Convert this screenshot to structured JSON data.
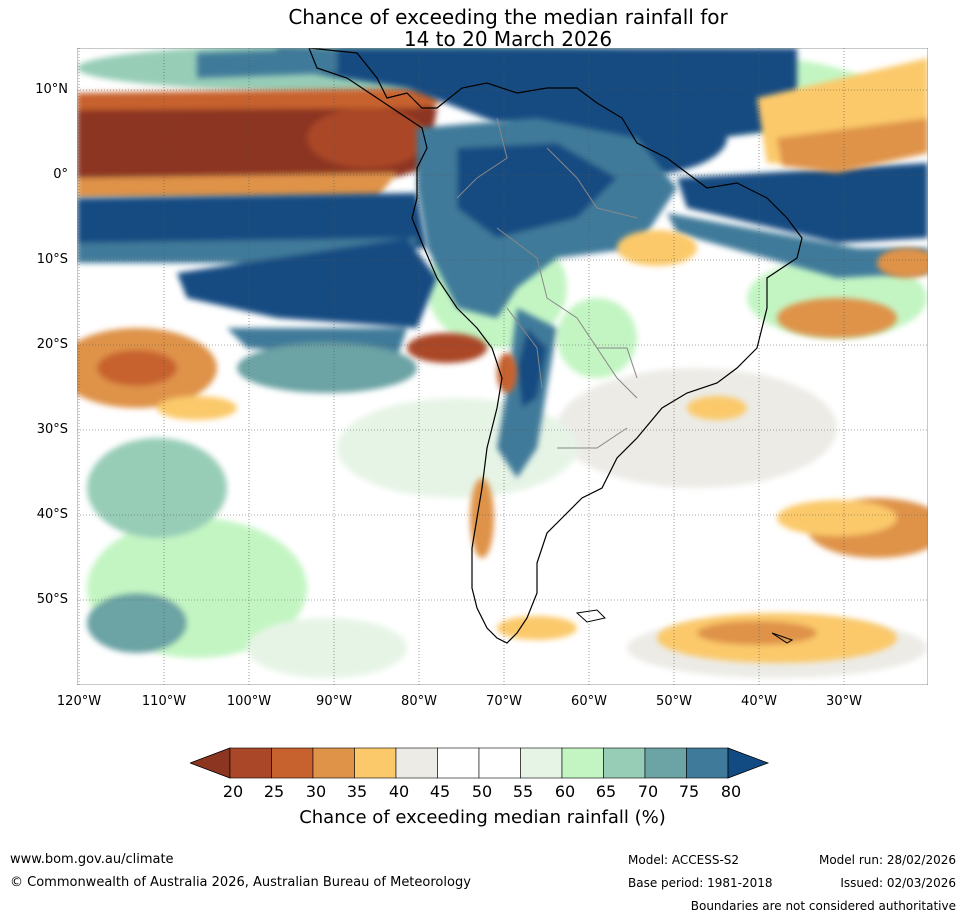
{
  "title": {
    "line1": "Chance of exceeding the median rainfall for",
    "line2": "14 to 20 March 2026"
  },
  "map": {
    "lat_labels": [
      "10°N",
      "0°",
      "10°S",
      "20°S",
      "30°S",
      "40°S",
      "50°S"
    ],
    "lon_labels": [
      "120°W",
      "110°W",
      "100°W",
      "90°W",
      "80°W",
      "70°W",
      "60°W",
      "50°W",
      "40°W",
      "30°W"
    ],
    "lat_range": [
      -60,
      15
    ],
    "lon_range": [
      -120,
      -20
    ]
  },
  "legend": {
    "ticks": [
      "20",
      "25",
      "30",
      "35",
      "40",
      "45",
      "50",
      "55",
      "60",
      "65",
      "70",
      "75",
      "80"
    ],
    "label": "Chance of exceeding median rainfall (%)",
    "colors": [
      "#8c3520",
      "#aa4728",
      "#c7622f",
      "#df9348",
      "#fbc96a",
      "#ecebe6",
      "#ffffff",
      "#ffffff",
      "#e6f4e6",
      "#c3f5c3",
      "#97cdb7",
      "#6ca3a4",
      "#407a9a",
      "#124b82"
    ]
  },
  "footer": {
    "website": "www.bom.gov.au/climate",
    "copyright": "© Commonwealth of Australia 2026, Australian Bureau of Meteorology",
    "model": "Model: ACCESS-S2",
    "model_run": "Model run: 28/02/2026",
    "base_period": "Base period: 1981-2018",
    "issued": "Issued: 02/03/2026",
    "disclaimer": "Boundaries are not considered authoritative"
  }
}
